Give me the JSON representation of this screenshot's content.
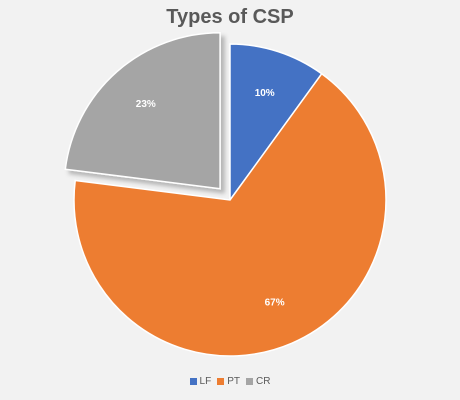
{
  "chart_data": {
    "type": "pie",
    "title": "Types of CSP",
    "categories": [
      "LF",
      "PT",
      "CR"
    ],
    "values": [
      10,
      67,
      23
    ],
    "labels": [
      "10%",
      "67%",
      "23%"
    ],
    "colors": [
      "#4472c4",
      "#ed7d31",
      "#a5a5a5"
    ],
    "exploded": "CR",
    "legend_position": "bottom"
  }
}
